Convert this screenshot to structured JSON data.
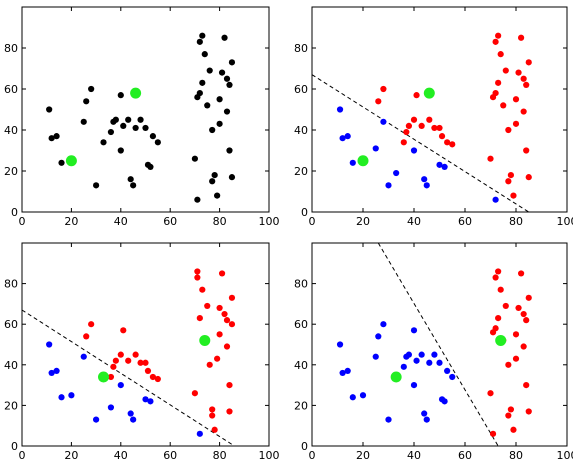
{
  "figure": {
    "description_colors": {
      "black": "#000000",
      "blue": "#0000ff",
      "red": "#ff0000",
      "centroid": "#22ee22",
      "boundary": "#000000"
    }
  },
  "chart_data": [
    {
      "type": "scatter",
      "title": "",
      "xlabel": "",
      "ylabel": "",
      "xlim": [
        0,
        100
      ],
      "ylim": [
        0,
        100
      ],
      "xticks": [
        0,
        20,
        40,
        60,
        80,
        100
      ],
      "yticks": [
        0,
        20,
        40,
        60,
        80
      ],
      "grid": false,
      "series": [
        {
          "color": "#000000",
          "x": [
            11,
            12,
            14,
            16,
            20,
            25,
            26,
            28,
            30,
            33,
            36,
            37,
            38,
            40,
            40,
            41,
            43,
            44,
            45,
            46,
            48,
            50,
            51,
            52,
            53,
            55,
            70,
            71,
            71,
            72,
            72,
            73,
            73,
            74,
            75,
            76,
            77,
            77,
            78,
            79,
            80,
            80,
            81,
            82,
            83,
            83,
            84,
            84,
            85,
            85
          ],
          "y": [
            50,
            36,
            37,
            24,
            25,
            44,
            54,
            60,
            13,
            34,
            39,
            44,
            45,
            30,
            57,
            42,
            45,
            16,
            13,
            41,
            45,
            41,
            23,
            22,
            37,
            34,
            26,
            56,
            6,
            58,
            83,
            86,
            63,
            77,
            52,
            69,
            40,
            15,
            18,
            8,
            43,
            55,
            68,
            85,
            65,
            49,
            62,
            30,
            17,
            73
          ]
        },
        {
          "color": "#22ee22",
          "role": "centroid",
          "x": [
            20,
            46
          ],
          "y": [
            25,
            58
          ]
        }
      ]
    },
    {
      "type": "scatter",
      "title": "",
      "xlabel": "",
      "ylabel": "",
      "xlim": [
        0,
        100
      ],
      "ylim": [
        0,
        100
      ],
      "xticks": [
        0,
        20,
        40,
        60,
        80,
        100
      ],
      "yticks": [
        0,
        20,
        40,
        60,
        80
      ],
      "grid": false,
      "boundary_line": {
        "x": [
          0,
          85
        ],
        "y": [
          67,
          0
        ]
      },
      "series": [
        {
          "color": "#0000ff",
          "x": [
            11,
            12,
            14,
            16,
            25,
            28,
            30,
            33,
            40,
            44,
            45,
            50,
            52,
            72
          ],
          "y": [
            50,
            36,
            37,
            24,
            31,
            44,
            13,
            19,
            30,
            16,
            13,
            23,
            22,
            6
          ]
        },
        {
          "color": "#ff0000",
          "x": [
            26,
            28,
            36,
            37,
            38,
            40,
            41,
            43,
            46,
            48,
            50,
            51,
            53,
            55,
            70,
            71,
            72,
            72,
            73,
            73,
            74,
            75,
            76,
            77,
            77,
            78,
            79,
            80,
            80,
            81,
            82,
            83,
            83,
            84,
            84,
            85,
            85
          ],
          "y": [
            54,
            60,
            34,
            39,
            42,
            45,
            57,
            42,
            45,
            41,
            41,
            37,
            34,
            33,
            26,
            56,
            58,
            83,
            86,
            63,
            77,
            52,
            69,
            40,
            15,
            18,
            8,
            43,
            55,
            68,
            85,
            65,
            49,
            62,
            30,
            17,
            73
          ]
        },
        {
          "color": "#22ee22",
          "role": "centroid",
          "x": [
            20,
            46
          ],
          "y": [
            25,
            58
          ]
        }
      ]
    },
    {
      "type": "scatter",
      "title": "",
      "xlabel": "",
      "ylabel": "",
      "xlim": [
        0,
        100
      ],
      "ylim": [
        0,
        100
      ],
      "xticks": [
        0,
        20,
        40,
        60,
        80,
        100
      ],
      "yticks": [
        0,
        20,
        40,
        60,
        80
      ],
      "grid": false,
      "boundary_line": {
        "x": [
          0,
          86
        ],
        "y": [
          67,
          0
        ]
      },
      "series": [
        {
          "color": "#0000ff",
          "x": [
            11,
            12,
            14,
            16,
            20,
            25,
            30,
            36,
            40,
            44,
            45,
            50,
            52,
            72
          ],
          "y": [
            50,
            36,
            37,
            24,
            25,
            44,
            13,
            19,
            30,
            16,
            13,
            23,
            22,
            6
          ]
        },
        {
          "color": "#ff0000",
          "x": [
            26,
            28,
            36,
            37,
            38,
            40,
            41,
            43,
            46,
            48,
            50,
            51,
            53,
            55,
            70,
            71,
            71,
            72,
            73,
            74,
            75,
            76,
            77,
            77,
            78,
            79,
            80,
            80,
            81,
            82,
            83,
            83,
            84,
            84,
            85,
            85
          ],
          "y": [
            54,
            60,
            34,
            39,
            42,
            45,
            57,
            42,
            45,
            41,
            41,
            37,
            34,
            33,
            26,
            83,
            86,
            63,
            77,
            52,
            69,
            40,
            15,
            18,
            8,
            43,
            55,
            68,
            85,
            65,
            49,
            62,
            30,
            17,
            73,
            60
          ]
        },
        {
          "color": "#22ee22",
          "role": "centroid",
          "x": [
            33,
            74
          ],
          "y": [
            34,
            52
          ]
        }
      ]
    },
    {
      "type": "scatter",
      "title": "",
      "xlabel": "",
      "ylabel": "",
      "xlim": [
        0,
        100
      ],
      "ylim": [
        0,
        100
      ],
      "xticks": [
        0,
        20,
        40,
        60,
        80,
        100
      ],
      "yticks": [
        0,
        20,
        40,
        60,
        80
      ],
      "grid": false,
      "boundary_line": {
        "x": [
          26,
          73
        ],
        "y": [
          100,
          0
        ]
      },
      "series": [
        {
          "color": "#0000ff",
          "x": [
            11,
            12,
            14,
            16,
            20,
            25,
            26,
            28,
            30,
            33,
            36,
            37,
            38,
            40,
            40,
            41,
            43,
            44,
            45,
            46,
            48,
            50,
            51,
            52,
            53,
            55
          ],
          "y": [
            50,
            36,
            37,
            24,
            25,
            44,
            54,
            60,
            13,
            34,
            39,
            44,
            45,
            30,
            57,
            42,
            45,
            16,
            13,
            41,
            45,
            41,
            23,
            22,
            37,
            34
          ]
        },
        {
          "color": "#ff0000",
          "x": [
            70,
            71,
            71,
            72,
            72,
            73,
            73,
            74,
            75,
            76,
            77,
            77,
            78,
            79,
            80,
            80,
            81,
            82,
            83,
            83,
            84,
            84,
            85,
            85
          ],
          "y": [
            26,
            56,
            6,
            58,
            83,
            86,
            63,
            77,
            52,
            69,
            40,
            15,
            18,
            8,
            43,
            55,
            68,
            85,
            65,
            49,
            62,
            30,
            17,
            73
          ]
        },
        {
          "color": "#22ee22",
          "role": "centroid",
          "x": [
            33,
            74
          ],
          "y": [
            34,
            52
          ]
        }
      ]
    }
  ]
}
